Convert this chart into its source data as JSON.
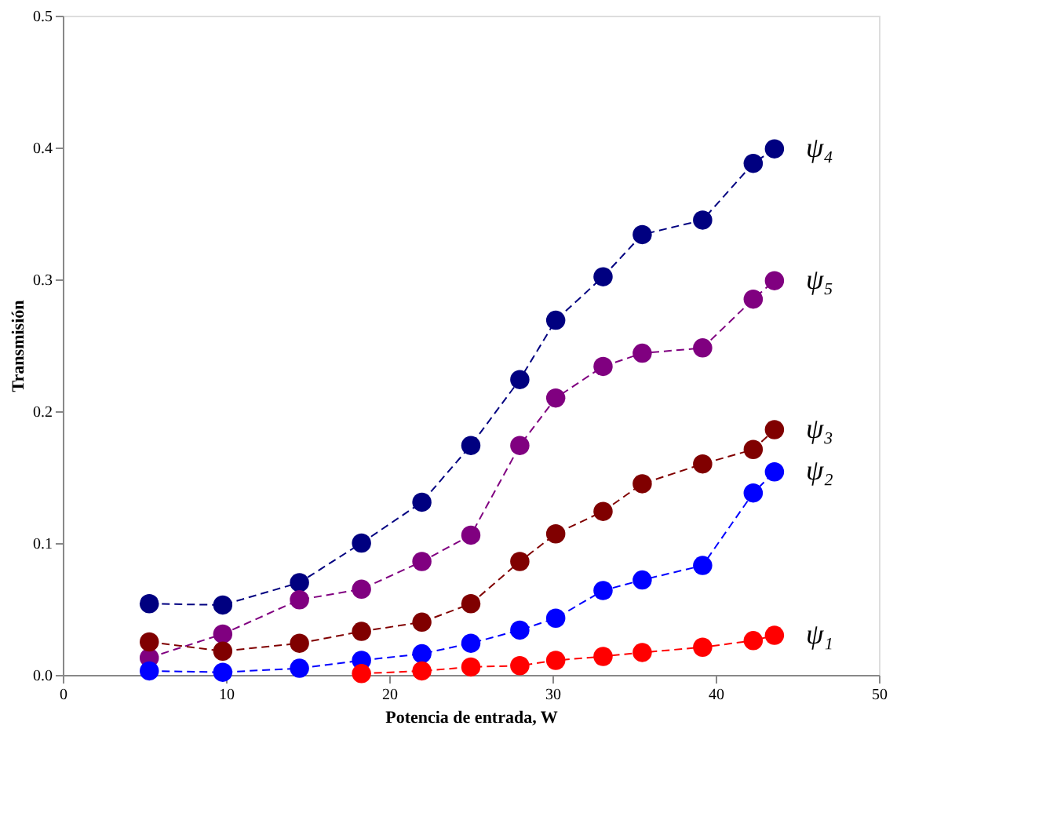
{
  "chart_data": {
    "type": "line",
    "xlabel": "Potencia de entrada, W",
    "ylabel": "Transmisión",
    "x": [
      5.3,
      9.8,
      14.5,
      18.3,
      22,
      25,
      28,
      30.2,
      33.1,
      35.5,
      39.2,
      42.3,
      43.6
    ],
    "series": [
      {
        "name": "ψ₄",
        "color": "#000080",
        "values": [
          0.054,
          0.053,
          0.07,
          0.1,
          0.131,
          0.174,
          0.224,
          0.269,
          0.302,
          0.334,
          0.345,
          0.388,
          0.399
        ]
      },
      {
        "name": "ψ₅",
        "color": "#800080",
        "values": [
          0.013,
          0.031,
          0.057,
          0.065,
          0.086,
          0.106,
          0.174,
          0.21,
          0.234,
          0.244,
          0.248,
          0.285,
          0.299
        ]
      },
      {
        "name": "ψ₃",
        "color": "#800000",
        "values": [
          0.025,
          0.018,
          0.024,
          0.033,
          0.04,
          0.054,
          0.086,
          0.107,
          0.124,
          0.145,
          0.16,
          0.171,
          0.186
        ]
      },
      {
        "name": "ψ₂",
        "color": "#0000ff",
        "values": [
          0.003,
          0.002,
          0.005,
          0.011,
          0.016,
          0.024,
          0.034,
          0.043,
          0.064,
          0.072,
          0.083,
          0.138,
          0.154
        ]
      },
      {
        "name": "ψ₁",
        "color": "#ff0000",
        "values": [
          null,
          null,
          null,
          0.001,
          0.003,
          0.006,
          0.007,
          0.011,
          0.014,
          0.017,
          0.021,
          0.026,
          0.03
        ]
      }
    ],
    "xlim": [
      0,
      50
    ],
    "xticks": [
      0,
      10,
      20,
      30,
      40,
      50
    ],
    "ylim": [
      0,
      0.5
    ],
    "yticks": [
      {
        "value": 0,
        "label": "0.0"
      },
      {
        "value": 0.1,
        "label": "0.1"
      },
      {
        "value": 0.2,
        "label": "0.2"
      },
      {
        "value": 0.3,
        "label": "0.3"
      },
      {
        "value": 0.4,
        "label": "0.4"
      },
      {
        "value": 0.5,
        "label": "0.5"
      }
    ],
    "grid": false,
    "legend": false,
    "marker": "circle",
    "line_style": "dashed"
  }
}
